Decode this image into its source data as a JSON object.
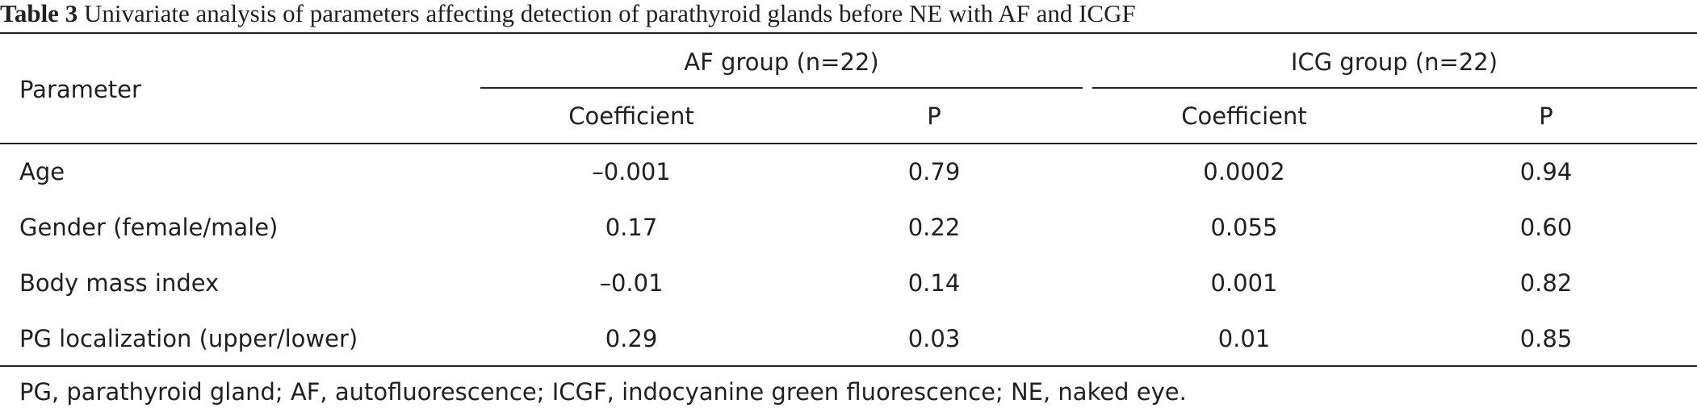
{
  "caption": {
    "label": "Table 3",
    "text": "Univariate analysis of parameters affecting detection of parathyroid glands before NE with AF and ICGF"
  },
  "table": {
    "param_header": "Parameter",
    "group_headers": [
      "AF group (n=22)",
      "ICG group (n=22)"
    ],
    "sub_headers": [
      "Coefficient",
      "P",
      "Coefficient",
      "P"
    ],
    "rows": [
      {
        "parameter": "Age",
        "values": [
          "–0.001",
          "0.79",
          "0.0002",
          "0.94"
        ]
      },
      {
        "parameter": "Gender (female/male)",
        "values": [
          "0.17",
          "0.22",
          "0.055",
          "0.60"
        ]
      },
      {
        "parameter": "Body mass index",
        "values": [
          "–0.01",
          "0.14",
          "0.001",
          "0.82"
        ]
      },
      {
        "parameter": "PG localization (upper/lower)",
        "values": [
          "0.29",
          "0.03",
          "0.01",
          "0.85"
        ]
      }
    ]
  },
  "footnote": "PG, parathyroid gland; AF, autofluorescence; ICGF, indocyanine green fluorescence; NE, naked eye."
}
